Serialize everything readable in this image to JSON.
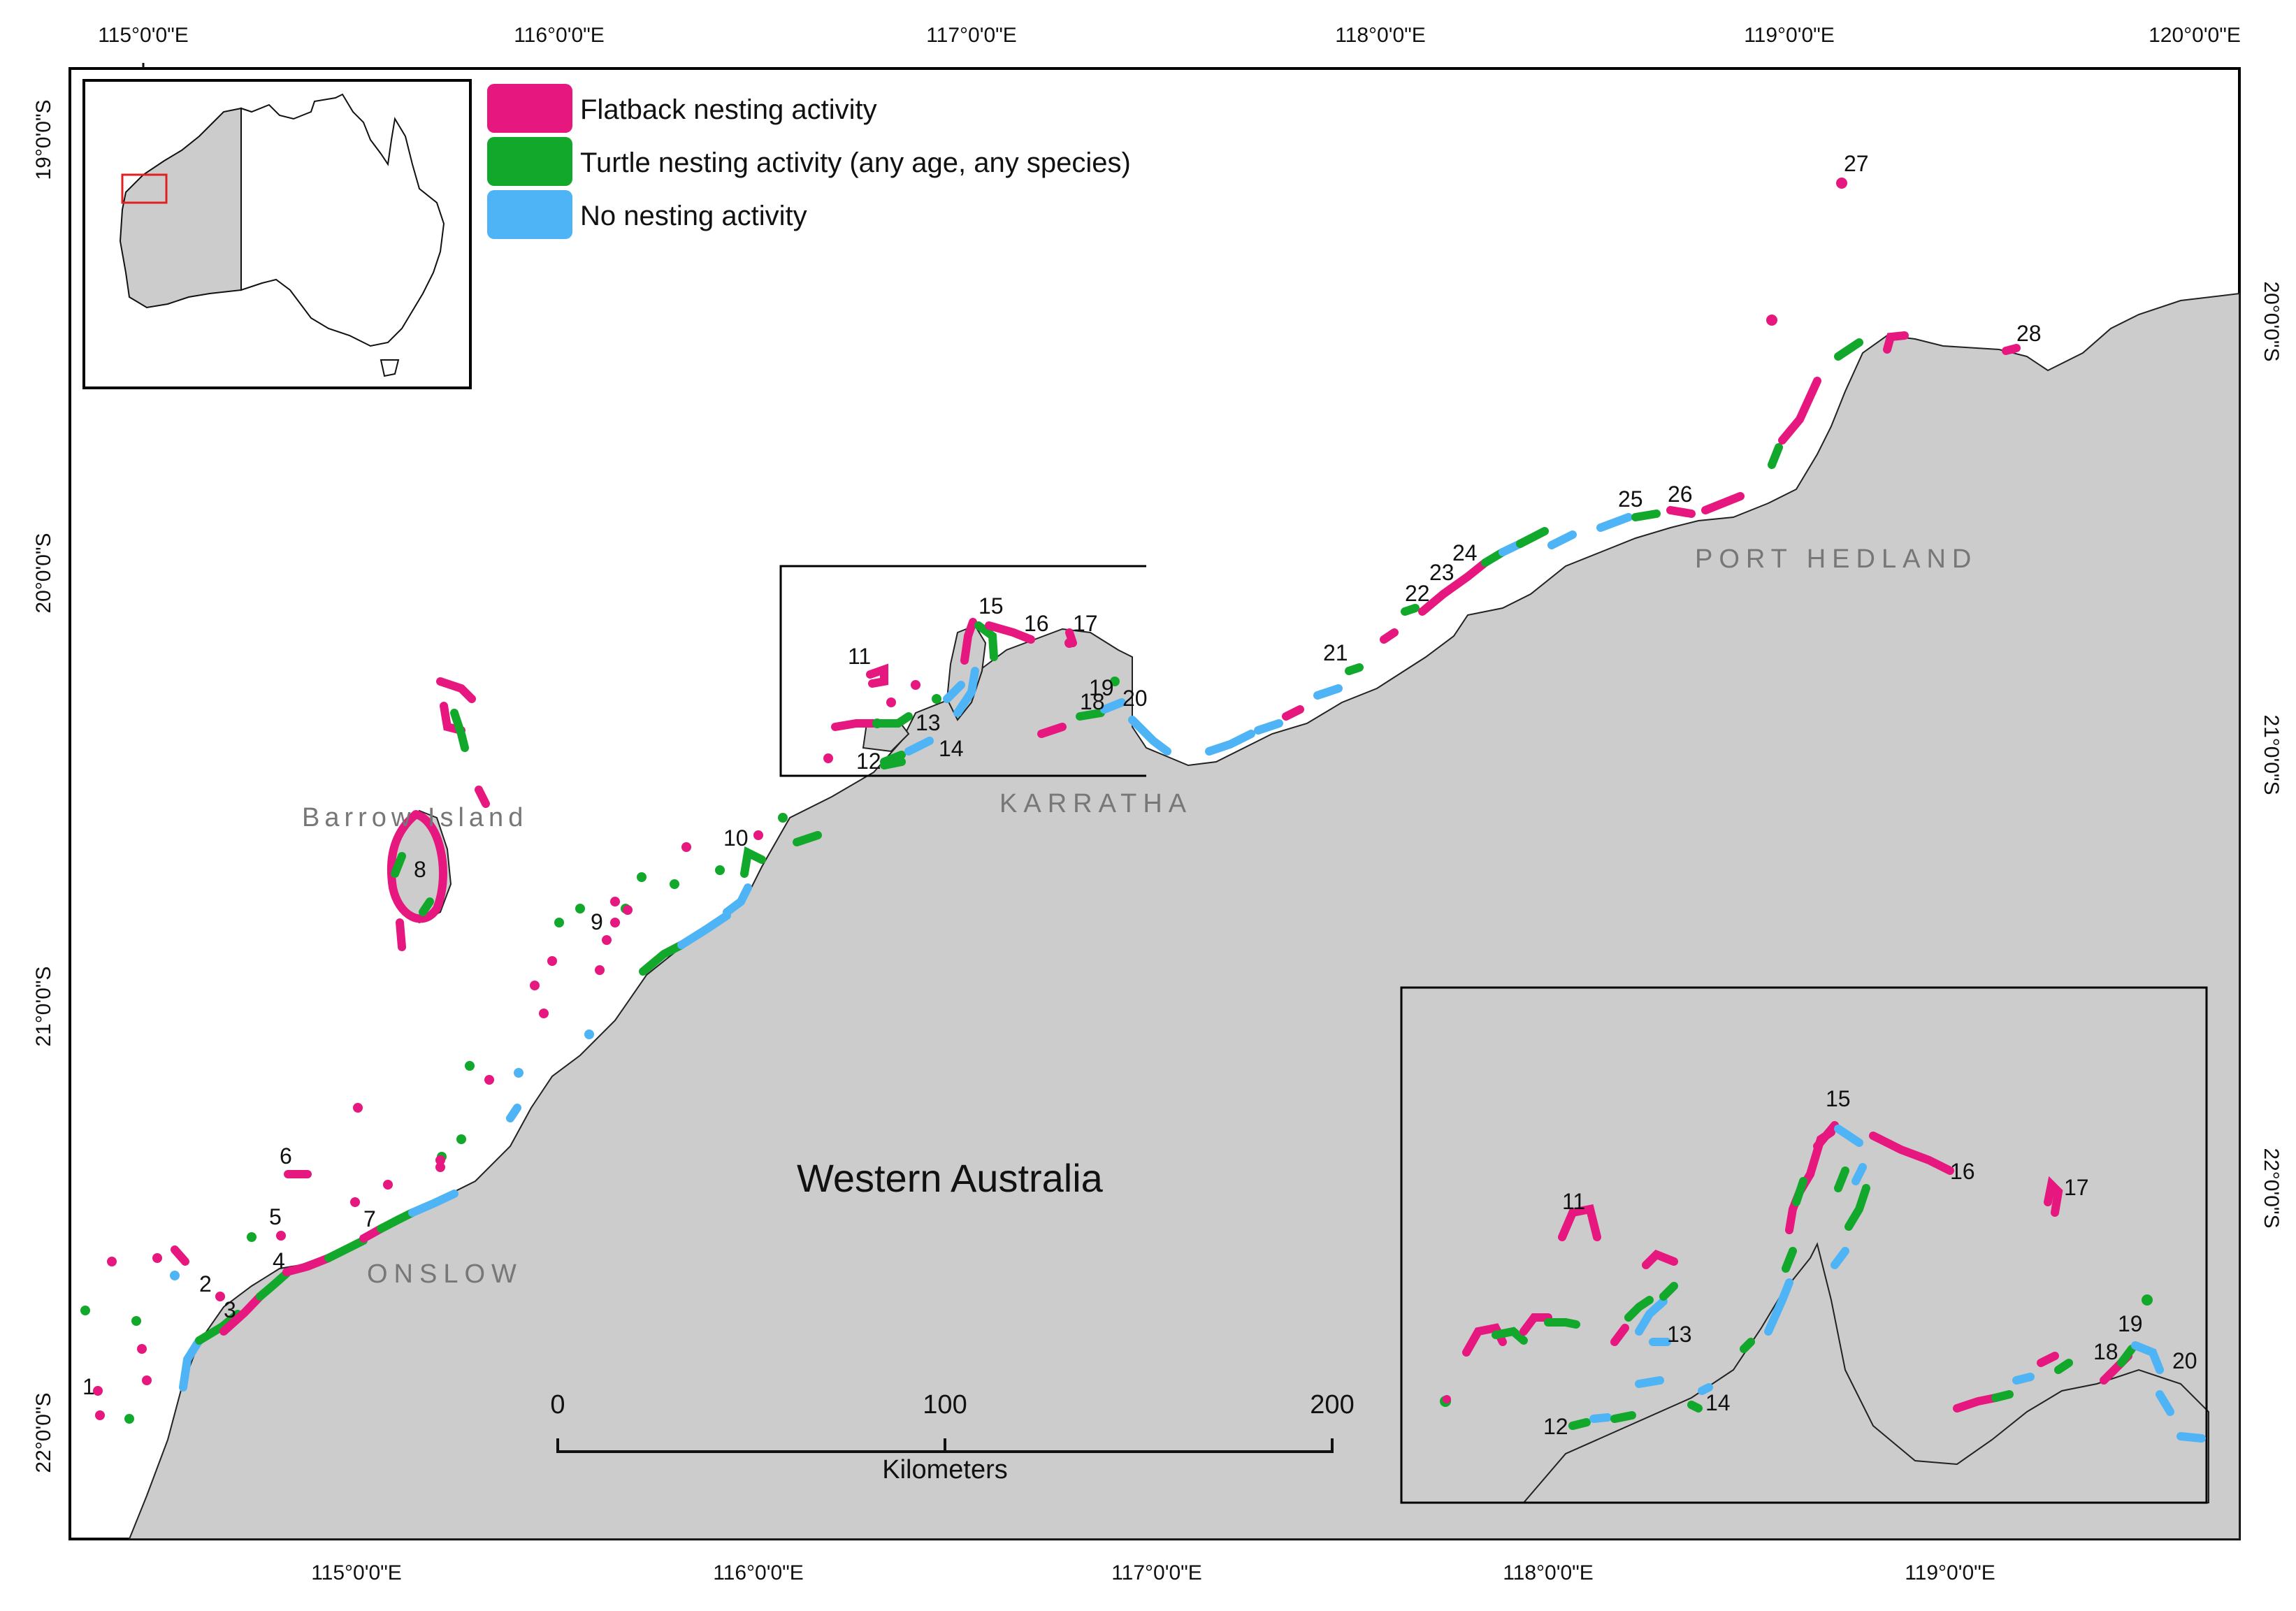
{
  "frame": {
    "top_labels": [
      "115°0'0\"E",
      "116°0'0\"E",
      "117°0'0\"E",
      "118°0'0\"E",
      "119°0'0\"E",
      "120°0'0\"E"
    ],
    "bottom_labels": [
      "115°0'0\"E",
      "116°0'0\"E",
      "117°0'0\"E",
      "118°0'0\"E",
      "119°0'0\"E"
    ],
    "left_labels": [
      "19°0'0\"S",
      "20°0'0\"S",
      "21°0'0\"S",
      "22°0'0\"S"
    ],
    "right_labels": [
      "20°0'0\"S",
      "21°0'0\"S",
      "22°0'0\"S"
    ]
  },
  "legend": {
    "items": [
      {
        "label": "Flatback nesting activity",
        "color": "#e6177f"
      },
      {
        "label": "Turtle nesting activity (any age, any species)",
        "color": "#11a82b"
      },
      {
        "label": "No nesting activity",
        "color": "#4fb4f5"
      }
    ]
  },
  "places": {
    "barrow_island": "Barrow Island",
    "karratha": "KARRATHA",
    "onslow": "ONSLOW",
    "port_hedland": "PORT HEDLAND",
    "state": "Western Australia"
  },
  "scale_bar": {
    "ticks": [
      "0",
      "100",
      "200"
    ],
    "unit": "Kilometers"
  },
  "site_numbers": [
    "1",
    "2",
    "3",
    "4",
    "5",
    "6",
    "7",
    "8",
    "9",
    "10",
    "11",
    "12",
    "13",
    "14",
    "15",
    "16",
    "17",
    "18",
    "19",
    "20",
    "21",
    "22",
    "23",
    "24",
    "25",
    "26",
    "27",
    "28"
  ],
  "inset_numbers": [
    "11",
    "12",
    "13",
    "14",
    "15",
    "16",
    "17",
    "18",
    "19",
    "20"
  ],
  "colors": {
    "land": "#cccccc",
    "flatback": "#e6177f",
    "turtle": "#11a82b",
    "none": "#4fb4f5",
    "locator_box": "#e02020"
  }
}
